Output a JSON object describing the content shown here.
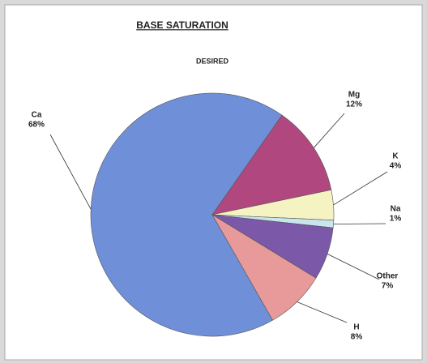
{
  "chart_data": {
    "type": "pie",
    "title": "BASE SATURATION",
    "subtitle": "DESIRED",
    "categories": [
      "Ca",
      "Mg",
      "K",
      "Na",
      "Other",
      "H"
    ],
    "values": [
      68,
      12,
      4,
      1,
      7,
      8
    ],
    "value_labels": [
      "68%",
      "12%",
      "4%",
      "1%",
      "7%",
      "8%"
    ],
    "colors": [
      "#6f8fd8",
      "#b0487f",
      "#f6f3c3",
      "#c9e6ee",
      "#7b58a8",
      "#e89a9a"
    ]
  }
}
